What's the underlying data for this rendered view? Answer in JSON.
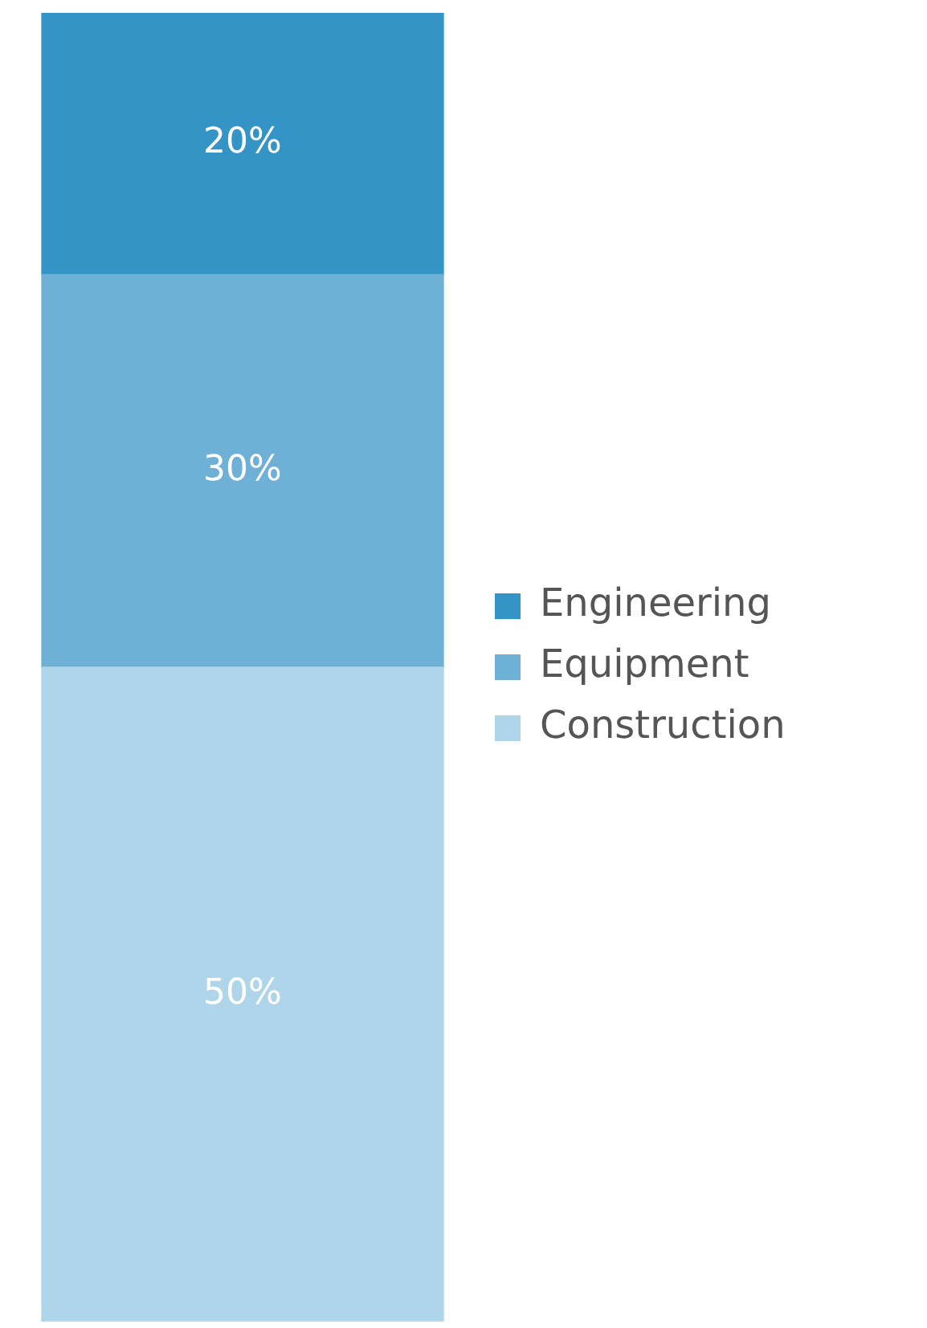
{
  "chart_data": {
    "type": "bar",
    "stacked": true,
    "categories": [
      null
    ],
    "ylim": [
      0,
      100
    ],
    "tick_labels": false,
    "legend": "right",
    "series": [
      {
        "name": "Construction",
        "color": "#afd5ea",
        "values": [
          50
        ],
        "value_labels": [
          "50%"
        ]
      },
      {
        "name": "Equipment",
        "color": "#6fb1d6",
        "values": [
          30
        ],
        "value_labels": [
          "30%"
        ]
      },
      {
        "name": "Engineering",
        "color": "#3594c6",
        "values": [
          20
        ],
        "value_labels": [
          "20%"
        ]
      }
    ]
  }
}
